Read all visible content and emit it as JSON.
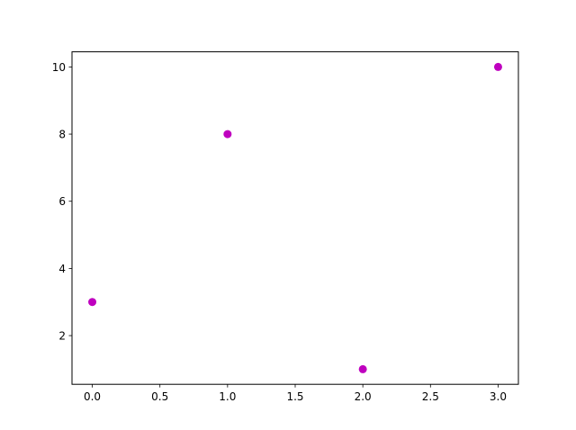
{
  "chart_data": {
    "type": "scatter",
    "title": "",
    "xlabel": "",
    "ylabel": "",
    "x": [
      0,
      1,
      2,
      3
    ],
    "y": [
      3,
      8,
      1,
      10
    ],
    "marker_color": "#bf00bf",
    "xlim": [
      -0.15,
      3.15
    ],
    "ylim": [
      0.55,
      10.45
    ],
    "xticks": [
      0.0,
      0.5,
      1.0,
      1.5,
      2.0,
      2.5,
      3.0
    ],
    "xtick_labels": [
      "0.0",
      "0.5",
      "1.0",
      "1.5",
      "2.0",
      "2.5",
      "3.0"
    ],
    "yticks": [
      2,
      4,
      6,
      8,
      10
    ],
    "ytick_labels": [
      "2",
      "4",
      "6",
      "8",
      "10"
    ],
    "grid": false,
    "legend": "none"
  }
}
